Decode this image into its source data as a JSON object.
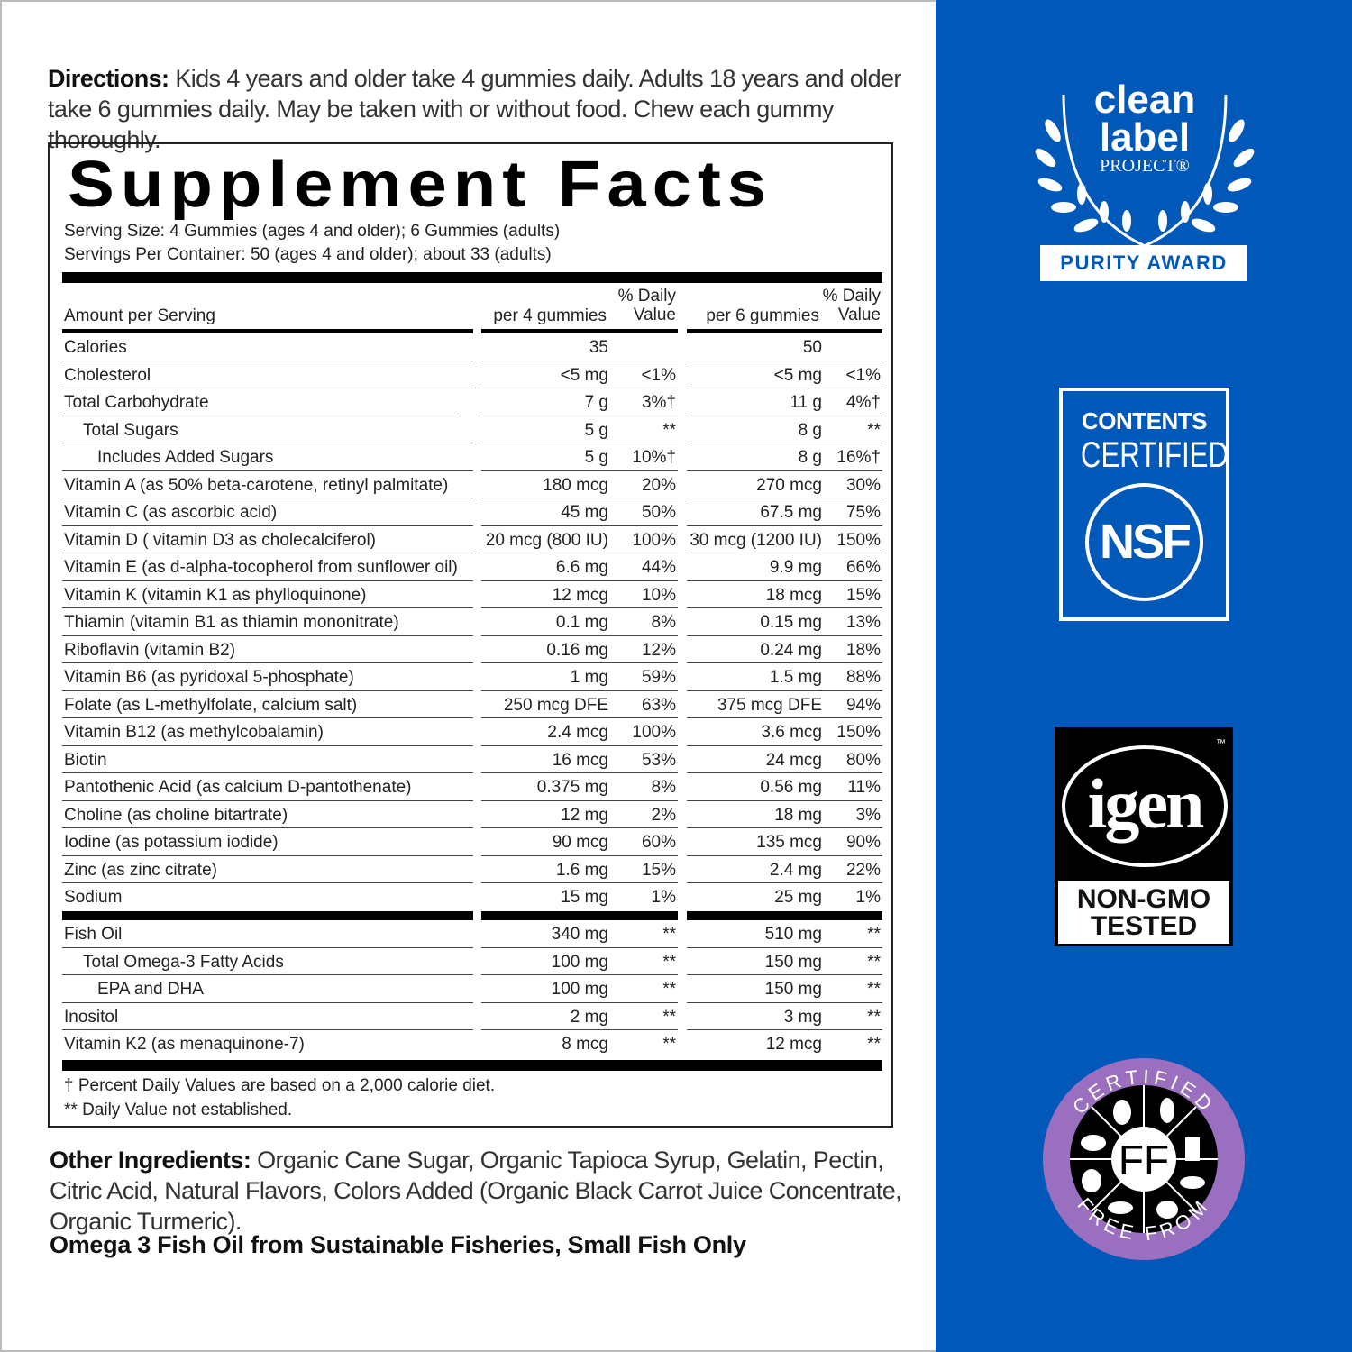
{
  "directions": {
    "label": "Directions:",
    "text": " Kids 4 years and older take 4 gummies daily. Adults 18 years and older take 6 gummies daily. May be taken with or without food. Chew each gummy thoroughly."
  },
  "facts": {
    "title": "Supplement Facts",
    "serving_size": "Serving Size: 4 Gummies (ages 4 and older); 6 Gummies (adults)",
    "servings_per_container": "Servings Per Container: 50 (ages 4 and older); about 33 (adults)",
    "header": {
      "amount": "Amount per Serving",
      "per4": "per 4 gummies",
      "per6": "per 6 gummies",
      "dv_line1": "% Daily",
      "dv_line2": "Value"
    },
    "rows": [
      {
        "name": "Calories",
        "indent": 0,
        "a4": "35",
        "d4": "",
        "a6": "50",
        "d6": ""
      },
      {
        "name": "Cholesterol",
        "indent": 0,
        "a4": "<5 mg",
        "d4": "<1%",
        "a6": "<5 mg",
        "d6": "<1%"
      },
      {
        "name": "Total Carbohydrate",
        "indent": 0,
        "a4": "7 g",
        "d4": "3%†",
        "a6": "11 g",
        "d6": "4%†"
      },
      {
        "name": "Total Sugars",
        "indent": 1,
        "a4": "5 g",
        "d4": "**",
        "a6": "8 g",
        "d6": "**"
      },
      {
        "name": "Includes Added Sugars",
        "indent": 2,
        "a4": "5 g",
        "d4": "10%†",
        "a6": "8 g",
        "d6": "16%†"
      },
      {
        "name": "Vitamin A (as 50% beta-carotene, retinyl palmitate)",
        "indent": 0,
        "a4": "180 mcg",
        "d4": "20%",
        "a6": "270 mcg",
        "d6": "30%"
      },
      {
        "name": "Vitamin C (as ascorbic acid)",
        "indent": 0,
        "a4": "45 mg",
        "d4": "50%",
        "a6": "67.5 mg",
        "d6": "75%"
      },
      {
        "name": "Vitamin D ( vitamin D3 as cholecalciferol)",
        "indent": 0,
        "a4": "20 mcg (800 IU)",
        "d4": "100%",
        "a6": "30 mcg (1200 IU)",
        "d6": "150%"
      },
      {
        "name": "Vitamin E (as d-alpha-tocopherol from sunflower oil)",
        "indent": 0,
        "a4": "6.6 mg",
        "d4": "44%",
        "a6": "9.9 mg",
        "d6": "66%"
      },
      {
        "name": "Vitamin K (vitamin K1 as phylloquinone)",
        "indent": 0,
        "a4": "12 mcg",
        "d4": "10%",
        "a6": "18 mcg",
        "d6": "15%"
      },
      {
        "name": "Thiamin (vitamin B1 as thiamin mononitrate)",
        "indent": 0,
        "a4": "0.1 mg",
        "d4": "8%",
        "a6": "0.15 mg",
        "d6": "13%"
      },
      {
        "name": "Riboflavin (vitamin B2)",
        "indent": 0,
        "a4": "0.16 mg",
        "d4": "12%",
        "a6": "0.24 mg",
        "d6": "18%"
      },
      {
        "name": "Vitamin B6 (as pyridoxal 5-phosphate)",
        "indent": 0,
        "a4": "1 mg",
        "d4": "59%",
        "a6": "1.5 mg",
        "d6": "88%"
      },
      {
        "name": "Folate (as L-methylfolate, calcium salt)",
        "indent": 0,
        "a4": "250 mcg DFE",
        "d4": "63%",
        "a6": "375 mcg DFE",
        "d6": "94%"
      },
      {
        "name": "Vitamin B12 (as methylcobalamin)",
        "indent": 0,
        "a4": "2.4 mcg",
        "d4": "100%",
        "a6": "3.6 mcg",
        "d6": "150%"
      },
      {
        "name": "Biotin",
        "indent": 0,
        "a4": "16 mcg",
        "d4": "53%",
        "a6": "24 mcg",
        "d6": "80%"
      },
      {
        "name": "Pantothenic Acid (as calcium D-pantothenate)",
        "indent": 0,
        "a4": "0.375 mg",
        "d4": "8%",
        "a6": "0.56 mg",
        "d6": "11%"
      },
      {
        "name": "Choline (as choline bitartrate)",
        "indent": 0,
        "a4": "12 mg",
        "d4": "2%",
        "a6": "18 mg",
        "d6": "3%"
      },
      {
        "name": "Iodine (as potassium iodide)",
        "indent": 0,
        "a4": "90 mcg",
        "d4": "60%",
        "a6": "135 mcg",
        "d6": "90%"
      },
      {
        "name": "Zinc (as zinc citrate)",
        "indent": 0,
        "a4": "1.6 mg",
        "d4": "15%",
        "a6": "2.4 mg",
        "d6": "22%"
      },
      {
        "name": "Sodium",
        "indent": 0,
        "a4": "15 mg",
        "d4": "1%",
        "a6": "25 mg",
        "d6": "1%"
      }
    ],
    "rows2": [
      {
        "name": "Fish Oil",
        "indent": 0,
        "a4": "340 mg",
        "d4": "**",
        "a6": "510 mg",
        "d6": "**"
      },
      {
        "name": "Total Omega-3 Fatty Acids",
        "indent": 1,
        "a4": "100 mg",
        "d4": "**",
        "a6": "150 mg",
        "d6": "**"
      },
      {
        "name": "EPA and DHA",
        "indent": 2,
        "a4": "100 mg",
        "d4": "**",
        "a6": "150 mg",
        "d6": "**"
      },
      {
        "name": "Inositol",
        "indent": 0,
        "a4": "2 mg",
        "d4": "**",
        "a6": "3 mg",
        "d6": "**"
      },
      {
        "name": "Vitamin K2 (as menaquinone-7)",
        "indent": 0,
        "a4": "8 mcg",
        "d4": "**",
        "a6": "12 mcg",
        "d6": "**"
      }
    ],
    "footnote1": "† Percent Daily Values are based on a 2,000 calorie diet.",
    "footnote2": "** Daily Value not established."
  },
  "other_ingredients": {
    "label": "Other Ingredients:",
    "text": " Organic Cane Sugar, Organic Tapioca Syrup, Gelatin, Pectin, Citric Acid, Natural Flavors, Colors Added (Organic Black Carrot Juice Concentrate, Organic Turmeric)."
  },
  "omega_note": "Omega 3 Fish Oil from Sustainable Fisheries, Small Fish Only",
  "badges": {
    "clean_label": {
      "line1": "clean",
      "line2": "label",
      "line3": "PROJECT®",
      "award": "PURITY AWARD"
    },
    "nsf": {
      "line1": "CONTENTS",
      "line2": "CERTIFIED",
      "logo": "NSF"
    },
    "non_gmo": {
      "logo": "igen",
      "tm": "™",
      "line1": "NON-GMO",
      "line2": "TESTED"
    },
    "free_from": {
      "top": "CERTIFIED",
      "bottom": "FREE FROM",
      "center": "FF"
    }
  },
  "colors": {
    "panel_blue": "#0058b9",
    "free_from_purple": "#9b6fc0"
  }
}
